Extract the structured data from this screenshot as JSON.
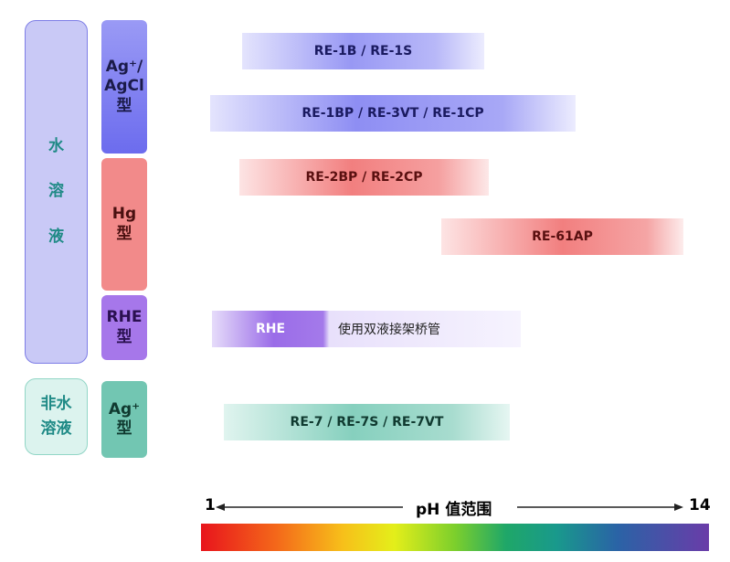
{
  "solvent_groups": [
    {
      "label_lines": [
        "水",
        "溶",
        "液"
      ]
    },
    {
      "label_lines": [
        "非水",
        "溶液"
      ]
    }
  ],
  "electrode_types": [
    {
      "label_lines": [
        "Ag⁺/",
        "AgCl",
        "型"
      ]
    },
    {
      "label_lines": [
        "Hg",
        "型"
      ]
    },
    {
      "label_lines": [
        "RHE",
        "型"
      ]
    },
    {
      "label_lines": [
        "Ag⁺",
        "型"
      ]
    }
  ],
  "ranges": [
    {
      "label": "RE-1B / RE-1S"
    },
    {
      "label": "RE-1BP / RE-3VT / RE-1CP"
    },
    {
      "label": "RE-2BP / RE-2CP"
    },
    {
      "label": "RE-61AP"
    },
    {
      "label": "RHE",
      "note": "使用双液接架桥管"
    },
    {
      "label": "RE-7 / RE-7S / RE-7VT"
    }
  ],
  "ph_axis": {
    "start": "1",
    "title": "pH 值范围",
    "end": "14"
  }
}
